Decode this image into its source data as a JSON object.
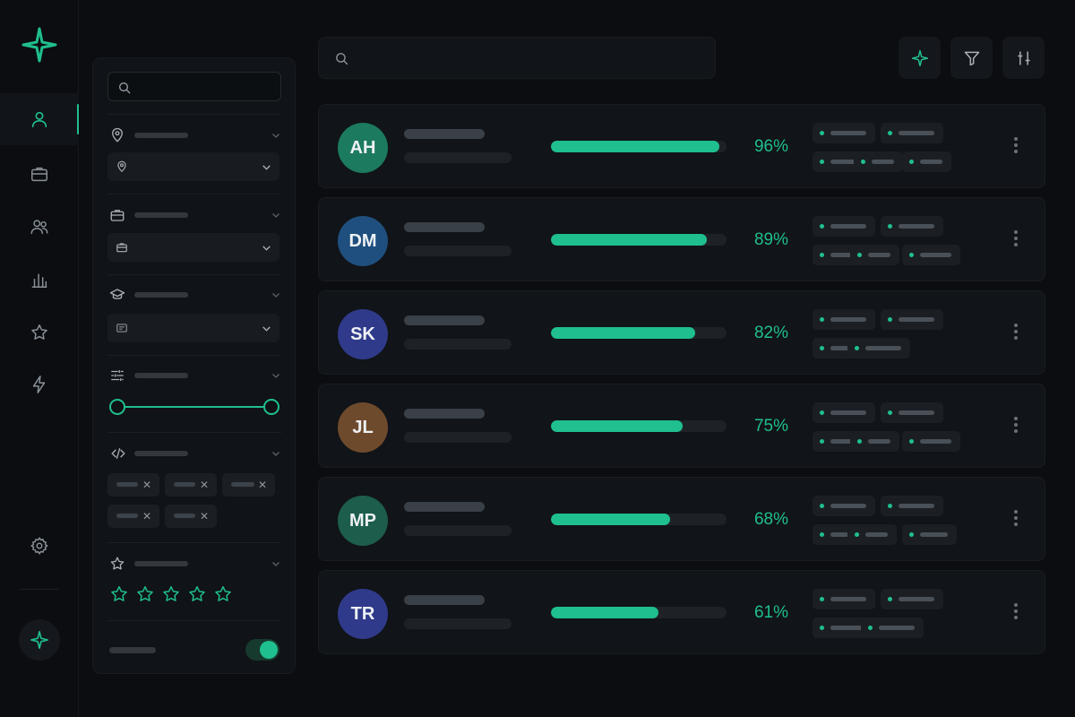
{
  "rail": {
    "items": [
      {
        "icon": "user-icon",
        "active": true
      },
      {
        "icon": "briefcase-icon",
        "active": false
      },
      {
        "icon": "users-icon",
        "active": false
      },
      {
        "icon": "bar-chart-icon",
        "active": false
      },
      {
        "icon": "star-icon",
        "active": false
      },
      {
        "icon": "bolt-icon",
        "active": false
      }
    ],
    "settings_icon": "gear-icon",
    "assistant_icon": "sparkle-icon"
  },
  "colors": {
    "accent": "#1fbf8f",
    "background": "#0b0d10",
    "panel": "#101317"
  },
  "filters": {
    "sections": [
      "location",
      "job",
      "education",
      "range",
      "skills",
      "rating",
      "toggle"
    ],
    "range": {
      "min_fraction": 0.0,
      "max_fraction": 1.0
    },
    "rating_stars": 5,
    "toggle_on": true
  },
  "candidates": [
    {
      "initials": "AH",
      "match": "96%",
      "match_value": 96,
      "avatar_color": "#1c7a5f"
    },
    {
      "initials": "DM",
      "match": "89%",
      "match_value": 89,
      "avatar_color": "#1f4f7e"
    },
    {
      "initials": "SK",
      "match": "82%",
      "match_value": 82,
      "avatar_color": "#2f3a8a"
    },
    {
      "initials": "JL",
      "match": "75%",
      "match_value": 75,
      "avatar_color": "#6e4a2c"
    },
    {
      "initials": "MP",
      "match": "68%",
      "match_value": 68,
      "avatar_color": "#1d5d4c"
    },
    {
      "initials": "TR",
      "match": "61%",
      "match_value": 61,
      "avatar_color": "#2f3a8a"
    }
  ]
}
